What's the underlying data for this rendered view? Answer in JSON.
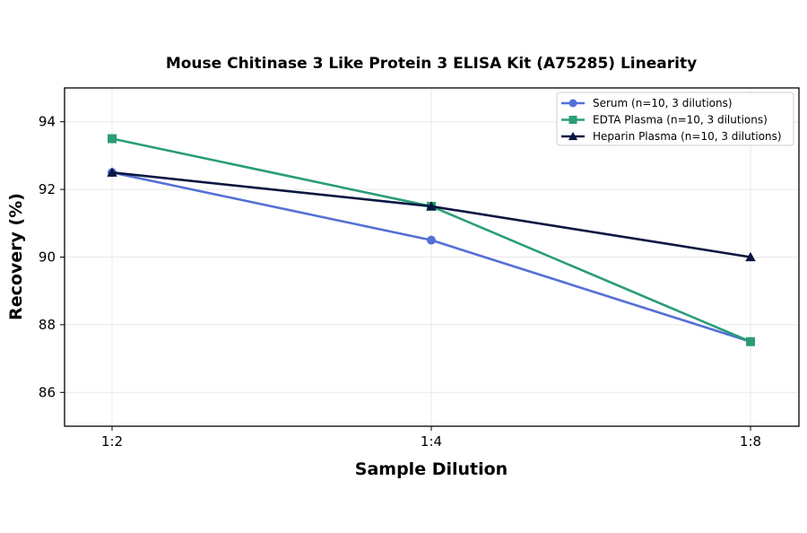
{
  "chart_data": {
    "type": "line",
    "title": "Mouse Chitinase 3 Like Protein 3 ELISA Kit (A75285) Linearity",
    "xlabel": "Sample Dilution",
    "ylabel": "Recovery (%)",
    "categories": [
      "1:2",
      "1:4",
      "1:8"
    ],
    "ylim": [
      85,
      95
    ],
    "yticks": [
      86,
      88,
      90,
      92,
      94
    ],
    "grid": true,
    "legend_position": "top-right",
    "series": [
      {
        "name": "Serum (n=10, 3 dilutions)",
        "values": [
          92.5,
          90.5,
          87.5
        ],
        "color": "#5470d6",
        "marker": "circle"
      },
      {
        "name": "EDTA Plasma (n=10, 3 dilutions)",
        "values": [
          93.5,
          91.5,
          87.5
        ],
        "color": "#2a9d78",
        "marker": "square"
      },
      {
        "name": "Heparin Plasma (n=10, 3 dilutions)",
        "values": [
          92.5,
          91.5,
          90.0
        ],
        "color": "#0b1742",
        "marker": "triangle"
      }
    ]
  }
}
